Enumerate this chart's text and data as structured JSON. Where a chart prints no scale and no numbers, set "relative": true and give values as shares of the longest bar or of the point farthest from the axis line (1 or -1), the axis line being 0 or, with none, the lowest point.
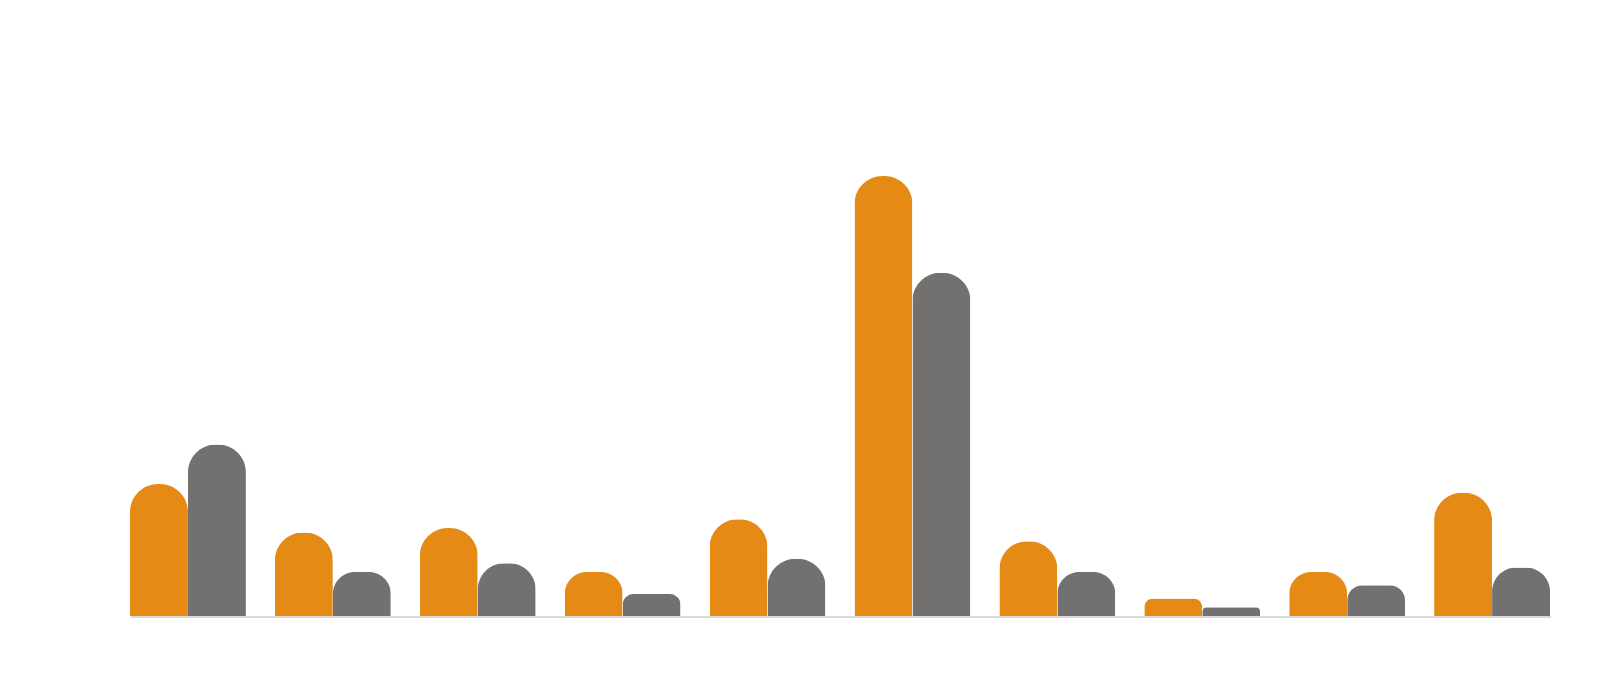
{
  "chart_data": {
    "type": "bar",
    "relative": true,
    "categories": [
      null,
      null,
      null,
      null,
      null,
      null,
      null,
      null,
      null,
      null
    ],
    "series": [
      {
        "color": "#e68a16",
        "values": [
          0.3,
          0.19,
          0.2,
          0.1,
          0.22,
          1,
          0.17,
          0.04,
          0.1,
          0.28
        ]
      },
      {
        "color": "#737070",
        "values": [
          0.39,
          0.1,
          0.12,
          0.05,
          0.13,
          0.78,
          0.1,
          0.02,
          0.07,
          0.11
        ]
      }
    ]
  }
}
